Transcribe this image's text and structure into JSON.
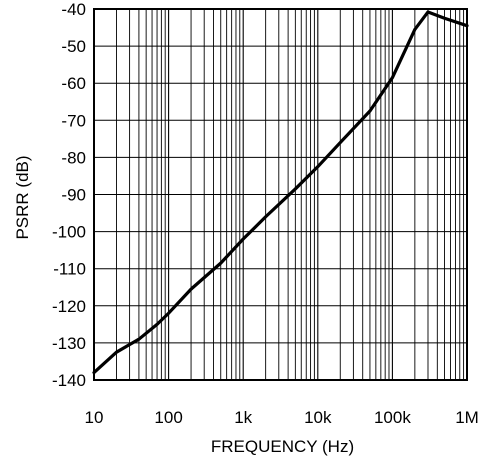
{
  "chart_data": {
    "type": "line",
    "title": "",
    "xlabel": "FREQUENCY (Hz)",
    "ylabel": "PSRR (dB)",
    "x_scale": "log",
    "xlim": [
      10,
      1000000
    ],
    "ylim": [
      -140,
      -40
    ],
    "grid": true,
    "x_ticks": [
      {
        "value": 10,
        "label": "10"
      },
      {
        "value": 100,
        "label": "100"
      },
      {
        "value": 1000,
        "label": "1k"
      },
      {
        "value": 10000,
        "label": "10k"
      },
      {
        "value": 100000,
        "label": "100k"
      },
      {
        "value": 1000000,
        "label": "1M"
      }
    ],
    "y_ticks": [
      {
        "value": -40,
        "label": "-40"
      },
      {
        "value": -50,
        "label": "-50"
      },
      {
        "value": -60,
        "label": "-60"
      },
      {
        "value": -70,
        "label": "-70"
      },
      {
        "value": -80,
        "label": "-80"
      },
      {
        "value": -90,
        "label": "-90"
      },
      {
        "value": -100,
        "label": "-100"
      },
      {
        "value": -110,
        "label": "-110"
      },
      {
        "value": -120,
        "label": "-120"
      },
      {
        "value": -130,
        "label": "-130"
      },
      {
        "value": -140,
        "label": "-140"
      }
    ],
    "series": [
      {
        "line_color": "#000000",
        "points": [
          {
            "x": 10,
            "y": -138
          },
          {
            "x": 20,
            "y": -132.5
          },
          {
            "x": 40,
            "y": -129
          },
          {
            "x": 70,
            "y": -125
          },
          {
            "x": 100,
            "y": -122
          },
          {
            "x": 200,
            "y": -115.5
          },
          {
            "x": 500,
            "y": -108.5
          },
          {
            "x": 1000,
            "y": -102
          },
          {
            "x": 2000,
            "y": -96
          },
          {
            "x": 5000,
            "y": -88.5
          },
          {
            "x": 10000,
            "y": -82.5
          },
          {
            "x": 20000,
            "y": -76
          },
          {
            "x": 50000,
            "y": -67.5
          },
          {
            "x": 100000,
            "y": -58.5
          },
          {
            "x": 200000,
            "y": -45.5
          },
          {
            "x": 300000,
            "y": -40.8
          },
          {
            "x": 500000,
            "y": -42.5
          },
          {
            "x": 1000000,
            "y": -44.5
          }
        ]
      }
    ],
    "colors": {
      "grid": "#000000",
      "frame": "#000000",
      "background": "#ffffff"
    }
  }
}
